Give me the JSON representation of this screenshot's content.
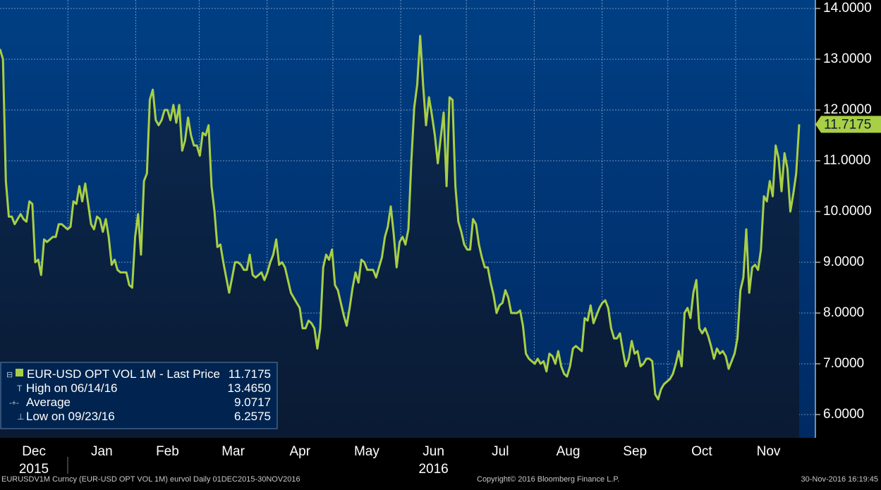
{
  "colors": {
    "plot_bg_top": "#003f84",
    "plot_bg_bottom": "#002a63",
    "fill_top": "#0b2a52",
    "fill_bottom": "#0a1a33",
    "line": "#a8cf45",
    "grid": "#9fb8d6",
    "label_bg": "#a8cf45"
  },
  "chart_data": {
    "type": "line",
    "series": [
      {
        "name": "EUR-USD OPT VOL 1M - Last Price",
        "values": [
          13.2,
          13.0,
          10.6,
          9.9,
          9.9,
          9.75,
          9.85,
          9.95,
          9.85,
          9.8,
          10.2,
          10.15,
          9.0,
          9.05,
          8.75,
          9.45,
          9.4,
          9.45,
          9.5,
          9.5,
          9.75,
          9.75,
          9.7,
          9.65,
          9.7,
          10.2,
          10.15,
          10.5,
          10.2,
          10.55,
          10.15,
          9.75,
          9.65,
          9.9,
          9.85,
          9.6,
          9.85,
          9.5,
          8.95,
          9.05,
          8.85,
          8.8,
          8.8,
          8.8,
          8.55,
          8.5,
          9.5,
          9.95,
          9.15,
          10.6,
          10.75,
          12.2,
          12.4,
          11.8,
          11.7,
          11.8,
          12.0,
          12.0,
          11.8,
          12.1,
          11.75,
          12.1,
          11.2,
          11.4,
          11.85,
          11.5,
          11.3,
          11.3,
          11.1,
          11.55,
          11.5,
          11.7,
          10.5,
          10.0,
          9.3,
          9.35,
          9.0,
          8.7,
          8.4,
          8.7,
          9.0,
          9.0,
          8.95,
          8.85,
          8.85,
          9.15,
          8.75,
          8.7,
          8.75,
          8.8,
          8.65,
          8.8,
          9.0,
          9.15,
          9.45,
          8.95,
          9.0,
          8.9,
          8.65,
          8.4,
          8.3,
          8.2,
          8.1,
          7.7,
          7.7,
          7.85,
          7.8,
          7.7,
          7.3,
          7.7,
          8.9,
          9.15,
          9.05,
          9.25,
          8.55,
          8.45,
          8.2,
          7.95,
          7.75,
          8.1,
          8.5,
          8.8,
          8.6,
          9.05,
          9.0,
          8.85,
          8.85,
          8.85,
          8.7,
          8.9,
          9.1,
          9.5,
          9.7,
          10.1,
          9.55,
          8.9,
          9.4,
          9.5,
          9.35,
          9.65,
          11.0,
          12.05,
          12.5,
          13.46,
          12.5,
          11.7,
          12.25,
          11.9,
          11.5,
          10.95,
          11.45,
          11.95,
          10.5,
          12.25,
          12.2,
          10.5,
          9.8,
          9.6,
          9.35,
          9.25,
          9.25,
          9.85,
          9.75,
          9.35,
          9.1,
          8.9,
          8.9,
          8.6,
          8.35,
          8.0,
          8.15,
          8.2,
          8.45,
          8.3,
          8.0,
          8.0,
          8.0,
          8.05,
          7.75,
          7.2,
          7.1,
          7.05,
          7.0,
          7.1,
          7.0,
          7.05,
          6.85,
          7.2,
          7.15,
          7.0,
          7.25,
          6.95,
          6.8,
          6.75,
          6.95,
          7.3,
          7.35,
          7.3,
          7.25,
          7.9,
          7.85,
          8.15,
          7.8,
          7.95,
          8.1,
          8.2,
          8.25,
          8.1,
          7.7,
          7.5,
          7.5,
          7.6,
          7.25,
          6.95,
          7.1,
          7.45,
          7.2,
          7.25,
          6.95,
          7.0,
          7.1,
          7.1,
          7.05,
          6.4,
          6.3,
          6.5,
          6.6,
          6.65,
          6.7,
          6.8,
          7.0,
          7.25,
          6.95,
          8.0,
          8.1,
          7.9,
          8.4,
          8.65,
          7.7,
          7.6,
          7.7,
          7.55,
          7.35,
          7.1,
          7.3,
          7.2,
          7.25,
          7.15,
          6.9,
          7.05,
          7.2,
          7.5,
          8.45,
          8.7,
          9.65,
          8.4,
          8.9,
          8.95,
          8.85,
          9.25,
          10.3,
          10.2,
          10.6,
          10.3,
          11.3,
          11.05,
          10.4,
          11.15,
          10.85,
          10.0,
          10.35,
          10.75,
          11.7175
        ]
      }
    ],
    "x_start": "2015-12-01",
    "x_end": "2016-11-30",
    "xlabels": [
      "Dec",
      "Jan",
      "Feb",
      "Mar",
      "Apr",
      "May",
      "Jun",
      "Jul",
      "Aug",
      "Sep",
      "Oct",
      "Nov"
    ],
    "year_labels": [
      "2015",
      "2016"
    ],
    "yticks": [
      "6.0000",
      "7.0000",
      "8.0000",
      "9.0000",
      "10.0000",
      "11.0000",
      "12.0000",
      "13.0000",
      "14.0000"
    ],
    "ylim": [
      5.6,
      14.2
    ],
    "last_price_label": "11.7175",
    "grid": true,
    "legend_position": "bottom-left"
  },
  "legend": {
    "title": "EUR-USD OPT VOL 1M - Last Price",
    "title_value": "11.7175",
    "rows": [
      {
        "icon": "T",
        "label": "High on 06/14/16",
        "value": "13.4650"
      },
      {
        "icon": "-+-",
        "label": "Average",
        "value": "9.0717"
      },
      {
        "icon": "⊥",
        "label": "Low on 09/23/16",
        "value": "6.2575"
      }
    ]
  },
  "footer": {
    "left": "EURUSDV1M Curncy (EUR-USD OPT VOL 1M) eurvol  Daily 01DEC2015-30NOV2016",
    "center": "Copyright© 2016 Bloomberg Finance L.P.",
    "right": "30-Nov-2016 16:19:45"
  }
}
